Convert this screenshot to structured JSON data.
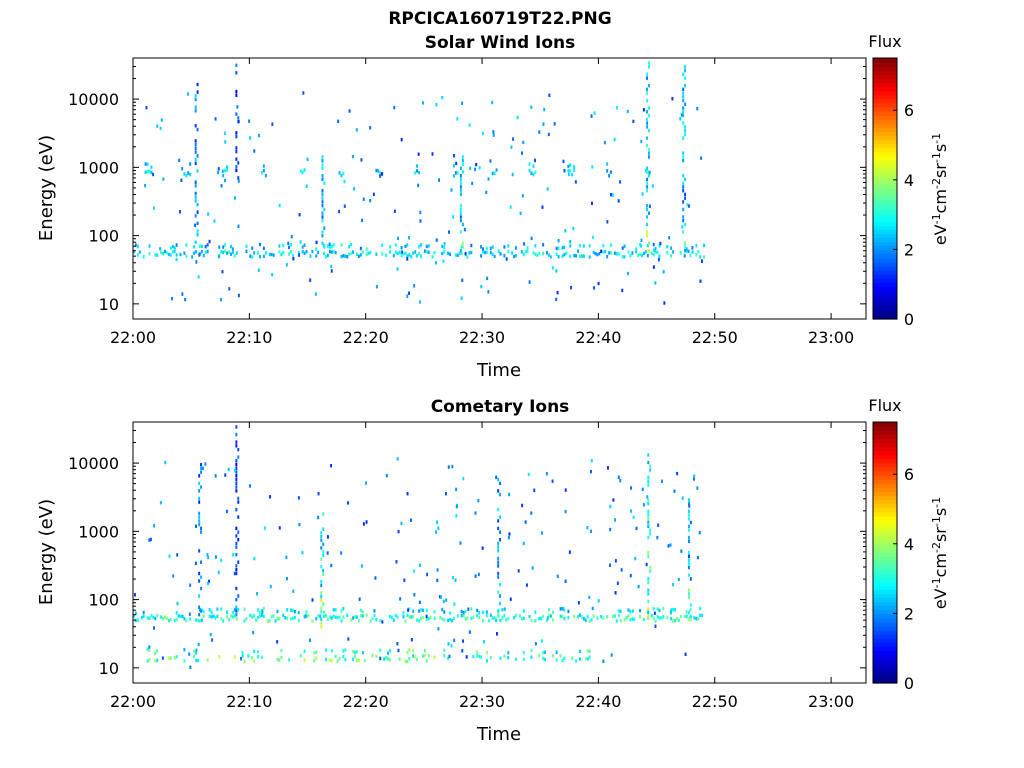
{
  "figure_title": "RPCICA160719T22.PNG",
  "chart_data": [
    {
      "type": "heatmap",
      "title": "Solar Wind Ions",
      "xlabel": "Time",
      "ylabel": "Energy (eV)",
      "xlim": [
        "22:00",
        "23:03"
      ],
      "ylim": [
        6,
        40000
      ],
      "yscale": "log",
      "x_ticks": [
        "22:00",
        "22:10",
        "22:20",
        "22:30",
        "22:40",
        "22:50",
        "23:00"
      ],
      "y_ticks": [
        "10",
        "100",
        "1000",
        "10000"
      ],
      "colorbar": {
        "label": "Flux",
        "unit": "eV-1cm-2sr-1s-1",
        "ticks": [
          "0",
          "2",
          "4",
          "6"
        ],
        "range": [
          0,
          7.5
        ],
        "colormap": "jet"
      },
      "data_extent": {
        "start": "22:00",
        "end": "22:49"
      },
      "bands": [
        {
          "energy": 55,
          "from": "22:00",
          "to": "22:49",
          "flux": 2.8
        },
        {
          "energy": 850,
          "from": "22:01",
          "to": "22:47",
          "flux": 2.6,
          "periodic_min": 3.3
        }
      ],
      "spikes": [
        {
          "time": "22:05.3",
          "emin": 80,
          "emax": 18000,
          "flux": 2.0
        },
        {
          "time": "22:08.8",
          "emin": 700,
          "emax": 40000,
          "flux": 1.5
        },
        {
          "time": "22:16.2",
          "emin": 60,
          "emax": 2000,
          "flux": 2.5
        },
        {
          "time": "22:28.1",
          "emin": 60,
          "emax": 1500,
          "flux": 2.4
        },
        {
          "time": "22:44.1",
          "emin": 60,
          "emax": 40000,
          "flux": 2.6
        },
        {
          "time": "22:47.2",
          "emin": 60,
          "emax": 30000,
          "flux": 2.3
        }
      ]
    },
    {
      "type": "heatmap",
      "title": "Cometary Ions",
      "xlabel": "Time",
      "ylabel": "Energy (eV)",
      "xlim": [
        "22:00",
        "23:03"
      ],
      "ylim": [
        6,
        40000
      ],
      "yscale": "log",
      "x_ticks": [
        "22:00",
        "22:10",
        "22:20",
        "22:30",
        "22:40",
        "22:50",
        "23:00"
      ],
      "y_ticks": [
        "10",
        "100",
        "1000",
        "10000"
      ],
      "colorbar": {
        "label": "Flux",
        "unit": "eV-1cm-2sr-1s-1",
        "ticks": [
          "0",
          "2",
          "4",
          "6"
        ],
        "range": [
          0,
          7.5
        ],
        "colormap": "jet"
      },
      "data_extent": {
        "start": "22:00",
        "end": "22:49"
      },
      "bands": [
        {
          "energy": 55,
          "from": "22:00",
          "to": "22:49",
          "flux": 3.2
        },
        {
          "energy": 14,
          "from": "22:01",
          "to": "22:40",
          "flux": 3.6,
          "patchy": true
        }
      ],
      "spikes": [
        {
          "time": "22:05.6",
          "emin": 60,
          "emax": 11000,
          "flux": 2.0
        },
        {
          "time": "22:08.8",
          "emin": 60,
          "emax": 35000,
          "flux": 1.5
        },
        {
          "time": "22:16.1",
          "emin": 40,
          "emax": 1800,
          "flux": 3.0
        },
        {
          "time": "22:31.3",
          "emin": 60,
          "emax": 6000,
          "flux": 2.2
        },
        {
          "time": "22:44.2",
          "emin": 50,
          "emax": 15000,
          "flux": 3.0
        },
        {
          "time": "22:47.7",
          "emin": 50,
          "emax": 3000,
          "flux": 2.4
        }
      ]
    }
  ]
}
